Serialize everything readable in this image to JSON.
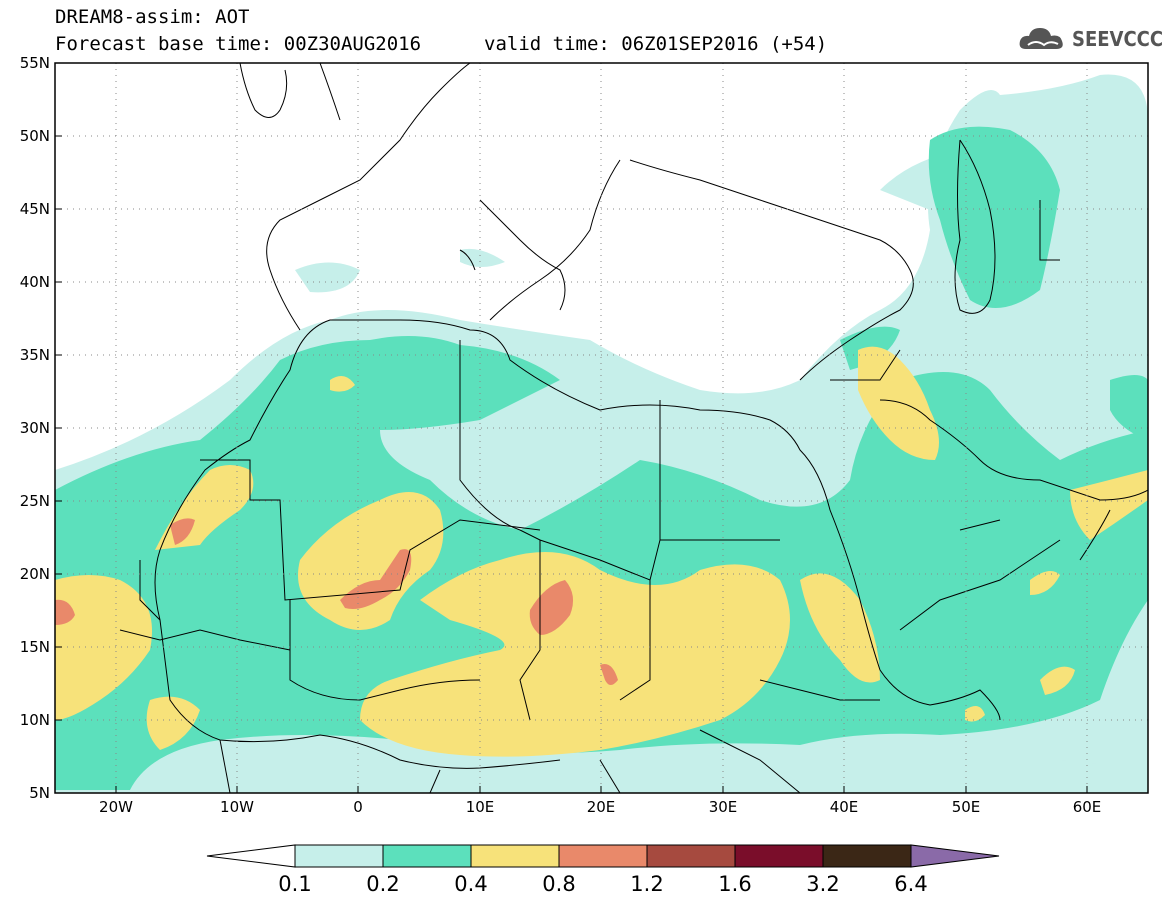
{
  "header": {
    "title": "DREAM8-assim: AOT",
    "base_time_label": "Forecast base time: 00Z30AUG2016",
    "valid_time_label": "valid time: 06Z01SEP2016 (+54)"
  },
  "logo": {
    "text": "SEEVCCC",
    "icon": "cloud-icon"
  },
  "axes": {
    "lat_labels": [
      "55N",
      "50N",
      "45N",
      "40N",
      "35N",
      "30N",
      "25N",
      "20N",
      "15N",
      "10N",
      "5N"
    ],
    "lon_labels": [
      "20W",
      "10W",
      "0",
      "10E",
      "20E",
      "30E",
      "40E",
      "50E",
      "60E"
    ],
    "lat_range": [
      5,
      55
    ],
    "lon_range": [
      -25,
      65
    ],
    "grid": "dotted"
  },
  "colorbar": {
    "labels": [
      "0.1",
      "0.2",
      "0.4",
      "0.8",
      "1.2",
      "1.6",
      "3.2",
      "6.4"
    ],
    "colors": [
      "#ffffff",
      "#c6efea",
      "#5ce0bc",
      "#f7e27a",
      "#e9896a",
      "#a64a3f",
      "#7a0d2a",
      "#3b2716",
      "#8a6aa8"
    ]
  },
  "map_colors": {
    "ocean": "#ffffff",
    "aot_0_1": "#c6efea",
    "aot_0_2": "#5ce0bc",
    "aot_0_4": "#f7e27a",
    "aot_0_8": "#e9896a"
  }
}
